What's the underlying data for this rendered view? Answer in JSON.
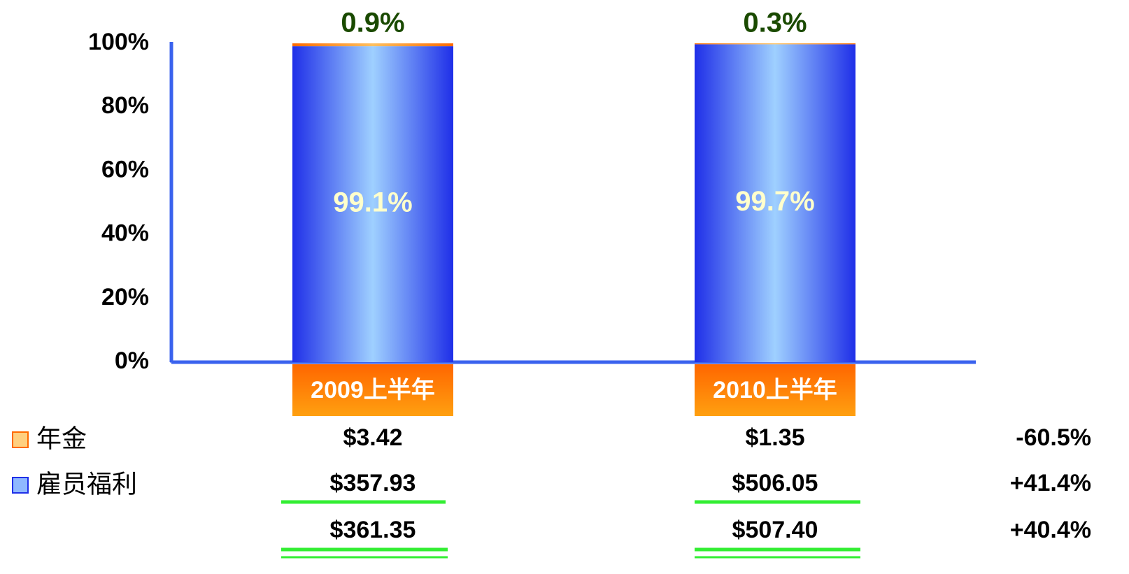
{
  "chart_data": {
    "type": "bar",
    "stacked": true,
    "categories": [
      "2009上半年",
      "2010上半年"
    ],
    "series": [
      {
        "name": "雇员福利",
        "color": "#1f2fe8",
        "values": [
          99.1,
          99.7
        ],
        "value_labels": [
          "99.1%",
          "99.7%"
        ]
      },
      {
        "name": "年金",
        "color": "#ff6a00",
        "values": [
          0.9,
          0.3
        ],
        "value_labels": [
          "0.9%",
          "0.3%"
        ]
      }
    ],
    "ylim": [
      0,
      100
    ],
    "yticks": [
      {
        "value": 0,
        "label": "0%"
      },
      {
        "value": 20,
        "label": "20%"
      },
      {
        "value": 40,
        "label": "40%"
      },
      {
        "value": 60,
        "label": "60%"
      },
      {
        "value": 80,
        "label": "80%"
      },
      {
        "value": 100,
        "label": "100%"
      }
    ]
  },
  "table": {
    "rows": [
      {
        "values": [
          "$3.42",
          "$1.35"
        ],
        "change": "-60.5%"
      },
      {
        "values": [
          "$357.93",
          "$506.05"
        ],
        "change": "+41.4%"
      },
      {
        "values": [
          "$361.35",
          "$507.40"
        ],
        "change": "+40.4%"
      }
    ]
  }
}
